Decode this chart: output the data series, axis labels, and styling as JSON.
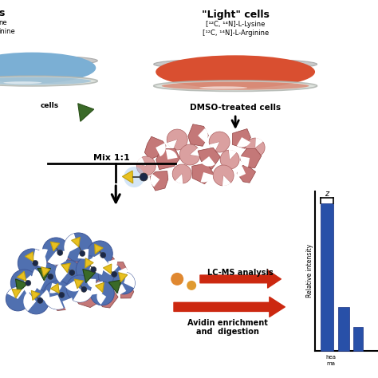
{
  "background_color": "#ffffff",
  "light_cell_label": "\"Light\" cells",
  "light_lysine": "[¹²C, ¹⁴N]-L-Lysine",
  "light_arginine": "[¹²C, ¹⁴N]-L-Arginine",
  "dmso_label": "DMSO-treated cells",
  "mix_label": "Mix 1:1",
  "lc_ms_label": "LC-MS analysis",
  "avidin_label": "Avidin enrichment\nand  digestion",
  "rel_intensity_label": "Relative intensity",
  "dish_blue_color": "#7bafd4",
  "dish_red_color": "#d94f30",
  "dish_rim_color": "#cccccc",
  "dish_glass_color": "#e8f0e8",
  "cell_pink_color": "#c47878",
  "cell_pink_light": "#daa0a0",
  "cell_blue_color": "#5070b0",
  "cell_blue_dark": "#405898",
  "probe_yellow_color": "#e8c020",
  "probe_dark_color": "#1a2848",
  "green_tag_color": "#3a6a28",
  "arrow_red_color": "#cc2810",
  "bar_blue_color": "#2850a8",
  "orange_dot": "#e08830"
}
